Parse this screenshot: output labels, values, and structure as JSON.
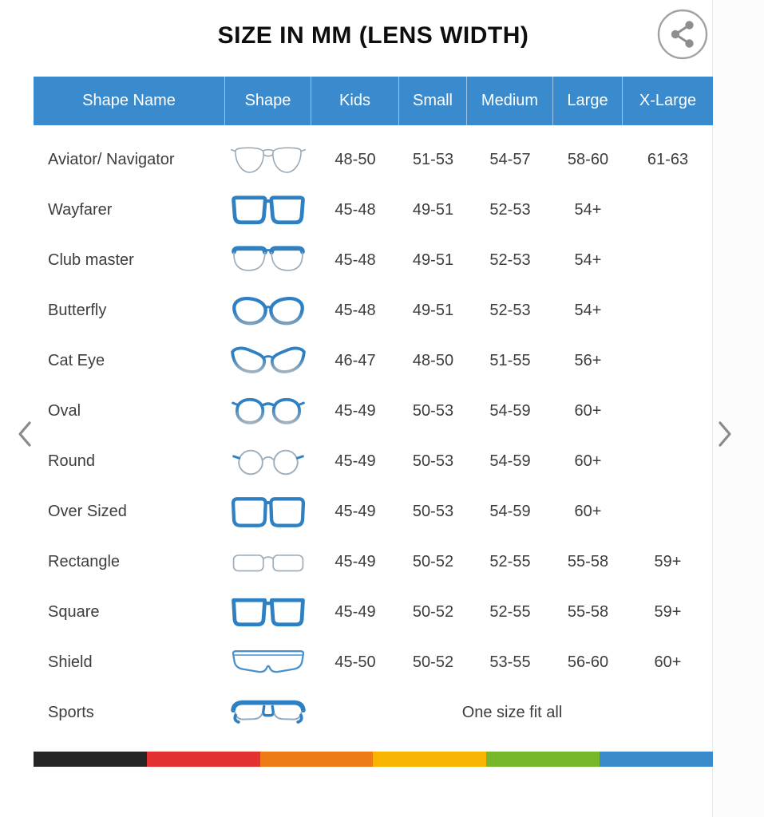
{
  "title": "SIZE IN MM (LENS WIDTH)",
  "share_button": {
    "icon": "share-icon"
  },
  "carousel": {
    "prev_icon": "chevron-left-icon",
    "next_icon": "chevron-right-icon"
  },
  "table": {
    "columns": [
      "Shape Name",
      "Shape",
      "Kids",
      "Small",
      "Medium",
      "Large",
      "X-Large"
    ],
    "rows": [
      {
        "name": "Aviator/ Navigator",
        "icon": "aviator-glasses-icon",
        "sizes": [
          "48-50",
          "51-53",
          "54-57",
          "58-60",
          "61-63"
        ]
      },
      {
        "name": "Wayfarer",
        "icon": "wayfarer-glasses-icon",
        "sizes": [
          "45-48",
          "49-51",
          "52-53",
          "54+",
          ""
        ]
      },
      {
        "name": "Club master",
        "icon": "clubmaster-glasses-icon",
        "sizes": [
          "45-48",
          "49-51",
          "52-53",
          "54+",
          ""
        ]
      },
      {
        "name": "Butterfly",
        "icon": "butterfly-glasses-icon",
        "sizes": [
          "45-48",
          "49-51",
          "52-53",
          "54+",
          ""
        ]
      },
      {
        "name": "Cat Eye",
        "icon": "cateye-glasses-icon",
        "sizes": [
          "46-47",
          "48-50",
          "51-55",
          "56+",
          ""
        ]
      },
      {
        "name": "Oval",
        "icon": "oval-glasses-icon",
        "sizes": [
          "45-49",
          "50-53",
          "54-59",
          "60+",
          ""
        ]
      },
      {
        "name": "Round",
        "icon": "round-glasses-icon",
        "sizes": [
          "45-49",
          "50-53",
          "54-59",
          "60+",
          ""
        ]
      },
      {
        "name": "Over Sized",
        "icon": "oversized-glasses-icon",
        "sizes": [
          "45-49",
          "50-53",
          "54-59",
          "60+",
          ""
        ]
      },
      {
        "name": "Rectangle",
        "icon": "rectangle-glasses-icon",
        "sizes": [
          "45-49",
          "50-52",
          "52-55",
          "55-58",
          "59+"
        ]
      },
      {
        "name": "Square",
        "icon": "square-glasses-icon",
        "sizes": [
          "45-49",
          "50-52",
          "52-55",
          "55-58",
          "59+"
        ]
      },
      {
        "name": "Shield",
        "icon": "shield-glasses-icon",
        "sizes": [
          "45-50",
          "50-52",
          "53-55",
          "56-60",
          "60+"
        ]
      },
      {
        "name": "Sports",
        "icon": "sports-glasses-icon",
        "one_size": "One size fit all"
      }
    ]
  },
  "footer_bar": {
    "colors": [
      "#262626",
      "#e23232",
      "#ee7c16",
      "#f7b400",
      "#76b82a",
      "#3b8bcc"
    ]
  },
  "theme": {
    "header_bg": "#3a8bcd",
    "header_text": "#ffffff",
    "body_text": "#3d3d3d",
    "frame_blue": "#2e80c3",
    "frame_gray": "#9cadbb"
  }
}
